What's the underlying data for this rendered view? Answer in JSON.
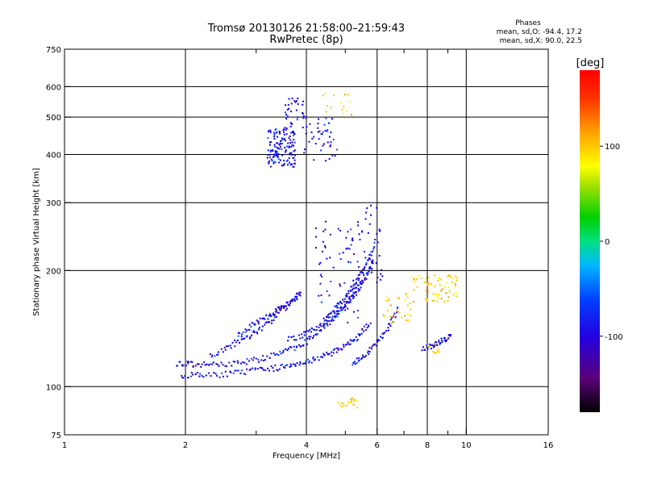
{
  "chart_data": {
    "type": "scatter",
    "title": "Tromsø 20130126 21:58:00–21:59:43",
    "subtitle": "RwPretec (8p)",
    "xlabel": "Frequency [MHz]",
    "ylabel": "Stationary phase Virtual Height [km]",
    "x_scale": "log",
    "y_scale": "log",
    "xlim": [
      1,
      16
    ],
    "ylim": [
      75,
      750
    ],
    "x_ticks": [
      1,
      2,
      4,
      6,
      8,
      10,
      16
    ],
    "x_tick_labels": [
      "1",
      "2",
      "4",
      "6",
      "8",
      "10",
      "16"
    ],
    "x_minor_ticks": [
      3,
      5,
      7,
      9
    ],
    "y_ticks": [
      75,
      100,
      200,
      300,
      400,
      500,
      600,
      750
    ],
    "y_tick_labels": [
      "75",
      "100",
      "200",
      "300",
      "400",
      "500",
      "600",
      "750"
    ],
    "grid": true,
    "stats": {
      "heading": "Phases",
      "line1": "mean, sd,O: -94.4, 17.2",
      "line2": "mean, sd,X:  90.0, 22.5"
    },
    "colorbar": {
      "label": "[deg]",
      "min": -180,
      "max": 180,
      "ticks": [
        100,
        0,
        -100
      ],
      "tick_labels": [
        "100",
        "0",
        "-100"
      ],
      "colormap": "rainbow"
    },
    "series": [
      {
        "mode": "O",
        "phase_mean": -94.4,
        "color": "#0000ff",
        "traces": [
          {
            "f": [
              1.9,
              2.1,
              2.4,
              2.8,
              3.2,
              3.6,
              4.0,
              4.4,
              4.8,
              5.2,
              5.6,
              5.9
            ],
            "h": [
              115,
              114,
              114,
              116,
              119,
              124,
              131,
              142,
              155,
              170,
              190,
              215
            ]
          },
          {
            "f": [
              1.95,
              2.2,
              2.6,
              3.0,
              3.4,
              3.8,
              4.2,
              4.6,
              5.0,
              5.4,
              5.8
            ],
            "h": [
              107,
              107,
              108,
              110,
              112,
              115,
              118,
              122,
              127,
              135,
              147
            ]
          },
          {
            "f": [
              2.3,
              2.6,
              2.9,
              3.2,
              3.5,
              3.8
            ],
            "h": [
              120,
              128,
              136,
              146,
              158,
              172
            ]
          },
          {
            "f": [
              2.7,
              2.95,
              3.2,
              3.45,
              3.7,
              3.9
            ],
            "h": [
              135,
              145,
              152,
              160,
              168,
              176
            ]
          },
          {
            "f": [
              3.6,
              4.0,
              4.4,
              4.8,
              5.2,
              5.6
            ],
            "h": [
              132,
              137,
              145,
              156,
              172,
              195
            ]
          },
          {
            "f": [
              4.4,
              4.7,
              5.0,
              5.3,
              5.6,
              5.9
            ],
            "h": [
              148,
              158,
              170,
              185,
              205,
              230
            ]
          },
          {
            "f": [
              5.2,
              5.6,
              6.0,
              6.4,
              6.8
            ],
            "h": [
              115,
              121,
              130,
              142,
              160
            ]
          },
          {
            "f": [
              7.8,
              8.3,
              8.8,
              9.2
            ],
            "h": [
              125,
              128,
              132,
              136
            ]
          }
        ],
        "clusters": [
          {
            "f_range": [
              3.2,
              3.75
            ],
            "h_range": [
              370,
              470
            ],
            "count": 140
          },
          {
            "f_range": [
              3.5,
              3.95
            ],
            "h_range": [
              470,
              560
            ],
            "count": 30
          },
          {
            "f_range": [
              3.9,
              4.8
            ],
            "h_range": [
              380,
              520
            ],
            "count": 45
          },
          {
            "f_range": [
              4.2,
              5.6
            ],
            "h_range": [
              140,
              270
            ],
            "count": 70
          },
          {
            "f_range": [
              5.6,
              6.2
            ],
            "h_range": [
              180,
              300
            ],
            "count": 30
          }
        ]
      },
      {
        "mode": "X",
        "phase_mean": 90.0,
        "color": "#ffcc00",
        "clusters": [
          {
            "f_range": [
              7.3,
              9.5
            ],
            "h_range": [
              165,
              195
            ],
            "count": 70
          },
          {
            "f_range": [
              6.2,
              7.4
            ],
            "h_range": [
              145,
              175
            ],
            "count": 30
          },
          {
            "f_range": [
              4.8,
              5.4
            ],
            "h_range": [
              88,
              94
            ],
            "count": 18
          },
          {
            "f_range": [
              4.4,
              5.2
            ],
            "h_range": [
              500,
              580
            ],
            "count": 15
          },
          {
            "f_range": [
              7.8,
              8.6
            ],
            "h_range": [
              120,
              130
            ],
            "count": 10
          }
        ]
      }
    ]
  }
}
